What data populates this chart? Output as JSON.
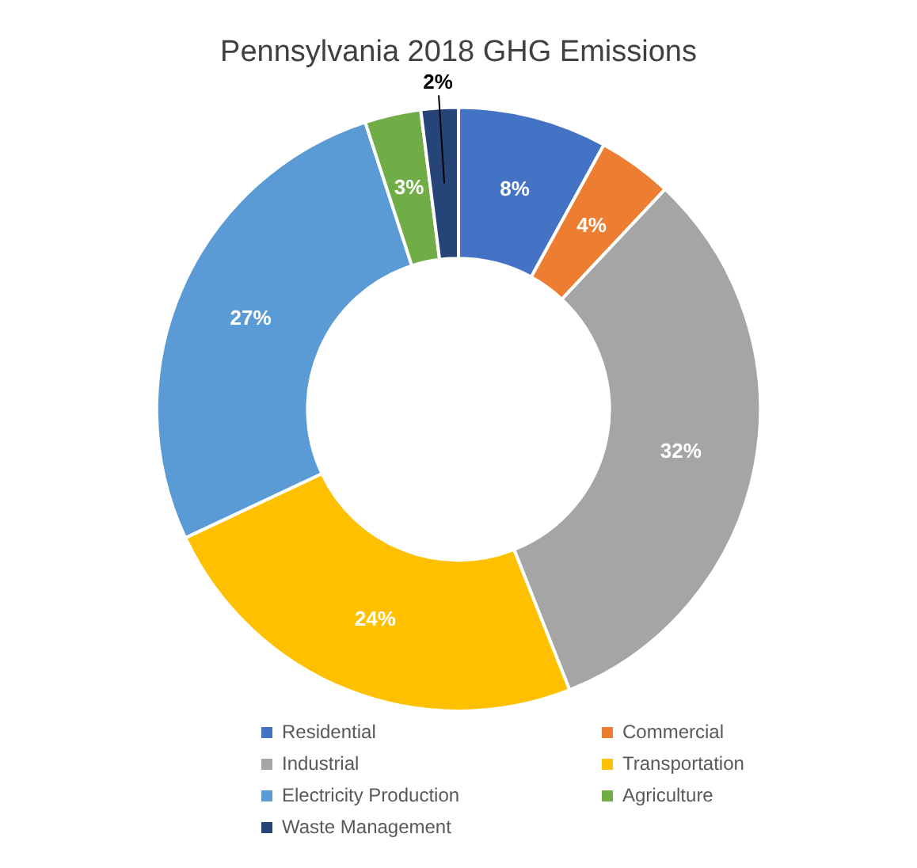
{
  "chart_data": {
    "type": "donut",
    "title": "Pennsylvania 2018 GHG Emissions",
    "categories": [
      "Residential",
      "Commercial",
      "Industrial",
      "Transportation",
      "Electricity Production",
      "Agriculture",
      "Waste Management"
    ],
    "values": [
      8,
      4,
      32,
      24,
      27,
      3,
      2
    ],
    "value_labels": [
      "8%",
      "4%",
      "32%",
      "24%",
      "27%",
      "3%",
      "2%"
    ],
    "colors": [
      "#4472c4",
      "#ed7d31",
      "#a5a5a5",
      "#ffc000",
      "#5b9bd5",
      "#70ad47",
      "#264478"
    ],
    "legend": "bottom"
  }
}
